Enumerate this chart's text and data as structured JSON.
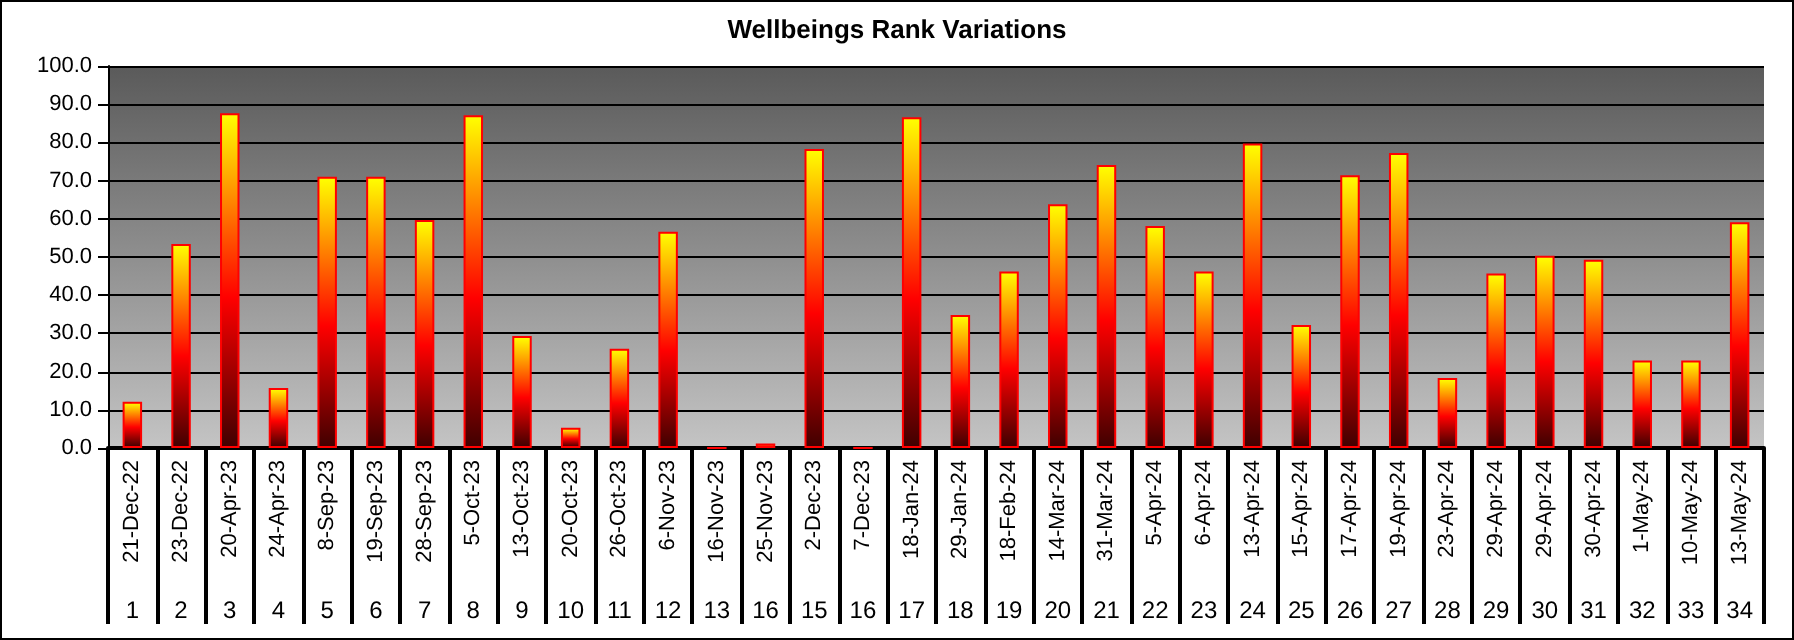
{
  "chart_data": {
    "type": "bar",
    "title": "Wellbeings Rank Variations",
    "categories": [
      "21-Dec-22\n1",
      "23-Dec-22\n2",
      "20-Apr-23\n3",
      "24-Apr-23\n4",
      "8-Sep-23\n5",
      "19-Sep-23\n6",
      "28-Sep-23\n7",
      "5-Oct-23\n8",
      "13-Oct-23\n9",
      "20-Oct-23\n10",
      "26-Oct-23\n11",
      "6-Nov-23\n12",
      "16-Nov-23\n13",
      "25-Nov-23\n16",
      "2-Dec-23\n15",
      "7-Dec-23\n16",
      "18-Jan-24\n17",
      "29-Jan-24\n18",
      "18-Feb-24\n19",
      "14-Mar-24\n20",
      "31-Mar-24\n21",
      "5-Apr-24\n22",
      "6-Apr-24\n23",
      "13-Apr-24\n24",
      "15-Apr-24\n25",
      "17-Apr-24\n26",
      "19-Apr-24\n27",
      "23-Apr-24\n28",
      "29-Apr-24\n29",
      "29-Apr-24\n30",
      "30-Apr-24\n31",
      "1-May-24\n32",
      "10-May-24\n33",
      "13-May-24\n34"
    ],
    "values": [
      12.1,
      53.4,
      87.6,
      15.7,
      71.0,
      71.0,
      59.7,
      87.1,
      29.3,
      5.3,
      26.0,
      56.6,
      0,
      1.2,
      78.3,
      0,
      86.6,
      34.8,
      46.2,
      63.8,
      74.1,
      58.1,
      46.2,
      79.7,
      32.2,
      71.4,
      77.2,
      18.3,
      45.7,
      50.3,
      49.3,
      22.9,
      22.9,
      59.1
    ],
    "color": "#ff0000",
    "ylim": [
      0,
      100
    ],
    "yticks": [
      {
        "value": 0,
        "label": "0.0"
      },
      {
        "value": 10,
        "label": "10.0"
      },
      {
        "value": 20,
        "label": "20.0"
      },
      {
        "value": 30,
        "label": "30.0"
      },
      {
        "value": 40,
        "label": "40.0"
      },
      {
        "value": 50,
        "label": "50.0"
      },
      {
        "value": 60,
        "label": "60.0"
      },
      {
        "value": 70,
        "label": "70.0"
      },
      {
        "value": 80,
        "label": "80.0"
      },
      {
        "value": 90,
        "label": "90.0"
      },
      {
        "value": 100,
        "label": "100.0"
      }
    ],
    "grid": "y"
  }
}
